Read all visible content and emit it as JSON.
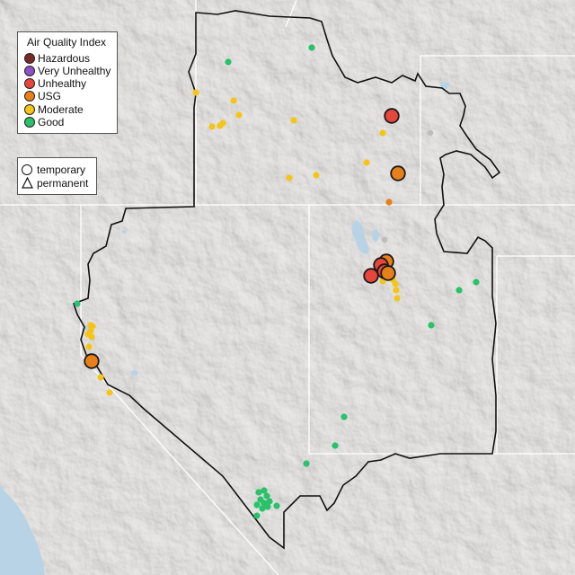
{
  "legend": {
    "title": "Air Quality Index",
    "categories": [
      {
        "label": "Hazardous",
        "color": "#7b2a2a"
      },
      {
        "label": "Very Unhealthy",
        "color": "#9150c6"
      },
      {
        "label": "Unhealthy",
        "color": "#e8453c"
      },
      {
        "label": "USG",
        "color": "#e8801a"
      },
      {
        "label": "Moderate",
        "color": "#f4c518"
      },
      {
        "label": "Good",
        "color": "#29c26a"
      }
    ],
    "monitor_types": [
      {
        "label": "temporary",
        "shape": "circle"
      },
      {
        "label": "permanent",
        "shape": "triangle"
      }
    ]
  },
  "map": {
    "region": "Great Basin and surrounding western US",
    "colors": {
      "land": "#e6e4e1",
      "relief_light": "#f0efed",
      "relief_dark": "#cfccc8",
      "water": "#b9d3e6",
      "boundary": "#111111",
      "state_lines": "#ffffff",
      "no_data_grey": "#bdbdbd"
    }
  }
}
